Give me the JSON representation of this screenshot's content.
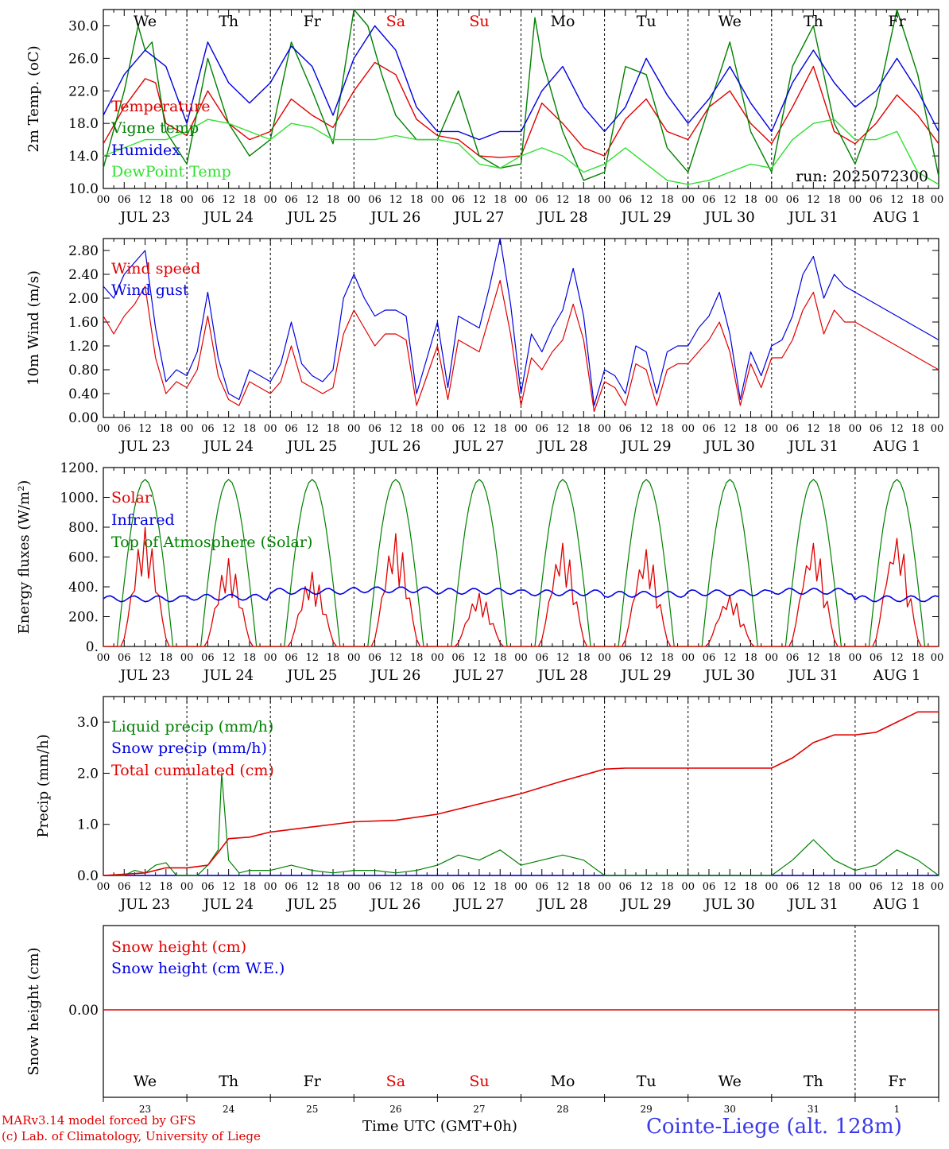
{
  "meta": {
    "credit1": "MARv3.14 model forced by GFS",
    "credit2": "(c) Lab. of Climatology, University of Liege",
    "xlabel": "Time UTC (GMT+0h)",
    "station": "Cointe-Liege (alt. 128m)",
    "run": "run: 2025072300"
  },
  "colors": {
    "red": "#e00000",
    "blue": "#0000e0",
    "green": "#008000",
    "lightgreen": "#30e030",
    "station": "#3a3ae8"
  },
  "hour_ticks": [
    "00",
    "06",
    "12",
    "18"
  ],
  "end_tick": "00",
  "days": [
    "JUL 23",
    "JUL 24",
    "JUL 25",
    "JUL 26",
    "JUL 27",
    "JUL 28",
    "JUL 29",
    "JUL 30",
    "JUL 31",
    "AUG  1"
  ],
  "weekdays": [
    "We",
    "Th",
    "Fr",
    "Sa",
    "Su",
    "Mo",
    "Tu",
    "We",
    "Th",
    "Fr"
  ],
  "weekend_days": [
    3,
    4
  ],
  "daynums": [
    "23",
    "24",
    "25",
    "26",
    "27",
    "28",
    "29",
    "30",
    "31",
    "1"
  ],
  "chart_data": [
    {
      "type": "line",
      "ylabel": "2m Temp. (oC)",
      "ylim": [
        10,
        32
      ],
      "yticks": [
        "10.0",
        "14.0",
        "18.0",
        "22.0",
        "26.0",
        "30.0"
      ],
      "x_unit": "hours from 2025-07-23 00 UTC",
      "series": [
        {
          "name": "Temperature",
          "color": "red",
          "x": [
            0,
            6,
            12,
            15,
            18,
            24,
            30,
            36,
            42,
            48,
            54,
            60,
            66,
            72,
            78,
            84,
            90,
            96,
            102,
            108,
            114,
            120,
            126,
            132,
            138,
            144,
            150,
            156,
            162,
            168,
            174,
            180,
            186,
            192,
            198,
            204,
            210,
            216,
            222,
            228,
            234,
            240
          ],
          "y": [
            15.5,
            20,
            23.5,
            23,
            18,
            16.5,
            22,
            18,
            16,
            17,
            21,
            19,
            17.5,
            22,
            25.5,
            24,
            18.5,
            16.5,
            16,
            14,
            13.8,
            14,
            20.5,
            18,
            15,
            14,
            18.5,
            21,
            17,
            16,
            20,
            22,
            18,
            15.5,
            20,
            25,
            17,
            15.5,
            18,
            21.5,
            19,
            15.5
          ]
        },
        {
          "name": "Vigne temp",
          "color": "green",
          "x": [
            0,
            6,
            10,
            12,
            14,
            18,
            24,
            30,
            36,
            42,
            48,
            54,
            60,
            66,
            72,
            76,
            80,
            84,
            90,
            96,
            102,
            108,
            114,
            120,
            124,
            126,
            132,
            138,
            144,
            150,
            156,
            162,
            168,
            174,
            180,
            186,
            192,
            198,
            204,
            210,
            216,
            222,
            228,
            234,
            240
          ],
          "y": [
            12.5,
            22,
            30,
            27,
            28,
            17,
            13,
            26,
            18,
            14,
            16,
            28,
            22,
            15.5,
            32,
            30,
            24,
            19,
            16,
            16,
            22,
            14,
            12.5,
            13,
            31,
            26,
            17,
            11,
            12,
            25,
            24,
            15,
            12,
            20,
            28,
            17,
            12,
            25,
            30,
            18,
            13,
            20,
            32,
            24,
            11.5
          ]
        },
        {
          "name": "Humidex",
          "color": "blue",
          "x": [
            0,
            6,
            12,
            18,
            24,
            30,
            36,
            42,
            48,
            54,
            60,
            66,
            72,
            78,
            84,
            90,
            96,
            102,
            108,
            114,
            120,
            126,
            132,
            138,
            144,
            150,
            156,
            162,
            168,
            174,
            180,
            186,
            192,
            198,
            204,
            210,
            216,
            222,
            228,
            234,
            240
          ],
          "y": [
            19,
            24,
            27,
            25,
            18,
            28,
            23,
            20.5,
            23,
            27.5,
            25,
            19,
            26,
            30,
            27,
            20,
            17,
            17,
            16,
            17,
            17,
            22,
            25,
            20,
            17,
            20,
            26,
            21.5,
            18,
            21,
            25,
            20.5,
            17,
            23,
            27,
            23,
            20,
            22,
            26,
            22,
            17
          ]
        },
        {
          "name": "DewPoint Temp",
          "color": "lightgreen",
          "x": [
            0,
            6,
            12,
            18,
            24,
            30,
            36,
            42,
            48,
            54,
            60,
            66,
            72,
            78,
            84,
            90,
            96,
            102,
            108,
            114,
            120,
            126,
            132,
            138,
            144,
            150,
            156,
            162,
            168,
            174,
            180,
            186,
            192,
            198,
            204,
            210,
            216,
            222,
            228,
            234,
            240
          ],
          "y": [
            14,
            15,
            16,
            16,
            17,
            18.5,
            18,
            17,
            16,
            18,
            17.5,
            16,
            16,
            16,
            16.5,
            16,
            16,
            15.5,
            13,
            12.5,
            14,
            15,
            14,
            12,
            13,
            15,
            13,
            11,
            10.5,
            11,
            12,
            13,
            12.5,
            16,
            18,
            18.5,
            16,
            16,
            17,
            12,
            10.5
          ]
        }
      ]
    },
    {
      "type": "line",
      "ylabel": "10m Wind (m/s)",
      "ylim": [
        0,
        3.0
      ],
      "yticks": [
        "0.00",
        "0.40",
        "0.80",
        "1.20",
        "1.60",
        "2.00",
        "2.40",
        "2.80"
      ],
      "x_unit": "hours from 2025-07-23 00 UTC",
      "series": [
        {
          "name": "Wind speed",
          "color": "red",
          "x": [
            0,
            3,
            6,
            9,
            12,
            15,
            18,
            21,
            24,
            27,
            30,
            33,
            36,
            39,
            42,
            45,
            48,
            51,
            54,
            57,
            60,
            63,
            66,
            69,
            72,
            75,
            78,
            81,
            84,
            87,
            90,
            93,
            96,
            99,
            102,
            105,
            108,
            111,
            114,
            117,
            120,
            123,
            126,
            129,
            132,
            135,
            138,
            141,
            144,
            147,
            150,
            153,
            156,
            159,
            162,
            165,
            168,
            171,
            174,
            177,
            180,
            183,
            186,
            189,
            192,
            195,
            198,
            201,
            204,
            207,
            210,
            213,
            216,
            219,
            222,
            225,
            228,
            231,
            234,
            237,
            240
          ],
          "y": [
            1.7,
            1.4,
            1.7,
            1.9,
            2.2,
            1.0,
            0.4,
            0.6,
            0.5,
            0.8,
            1.7,
            0.7,
            0.3,
            0.2,
            0.6,
            0.5,
            0.4,
            0.6,
            1.2,
            0.6,
            0.5,
            0.4,
            0.5,
            1.4,
            1.8,
            1.5,
            1.2,
            1.4,
            1.4,
            1.3,
            0.2,
            0.7,
            1.2,
            0.3,
            1.3,
            1.2,
            1.1,
            1.7,
            2.3,
            1.4,
            0.2,
            1.0,
            0.8,
            1.1,
            1.3,
            1.9,
            1.3,
            0.1,
            0.6,
            0.5,
            0.2,
            0.9,
            0.8,
            0.2,
            0.8,
            0.9,
            0.9,
            1.1,
            1.3,
            1.6,
            1.1,
            0.2,
            0.9,
            0.5,
            1.0,
            1.0,
            1.3,
            1.8,
            2.1,
            1.4,
            1.8,
            1.6,
            1.6,
            1.5,
            1.4,
            1.3,
            1.2,
            1.1,
            1.0,
            0.9,
            0.8
          ]
        },
        {
          "name": "Wind gust",
          "color": "blue",
          "x": [
            0,
            3,
            6,
            9,
            12,
            15,
            18,
            21,
            24,
            27,
            30,
            33,
            36,
            39,
            42,
            45,
            48,
            51,
            54,
            57,
            60,
            63,
            66,
            69,
            72,
            75,
            78,
            81,
            84,
            87,
            90,
            93,
            96,
            99,
            102,
            105,
            108,
            111,
            114,
            117,
            120,
            123,
            126,
            129,
            132,
            135,
            138,
            141,
            144,
            147,
            150,
            153,
            156,
            159,
            162,
            165,
            168,
            171,
            174,
            177,
            180,
            183,
            186,
            189,
            192,
            195,
            198,
            201,
            204,
            207,
            210,
            213,
            216,
            219,
            222,
            225,
            228,
            231,
            234,
            237,
            240
          ],
          "y": [
            2.2,
            2.0,
            2.4,
            2.6,
            2.8,
            1.5,
            0.6,
            0.8,
            0.7,
            1.1,
            2.1,
            1.0,
            0.4,
            0.3,
            0.8,
            0.7,
            0.6,
            0.9,
            1.6,
            0.9,
            0.7,
            0.6,
            0.8,
            2.0,
            2.4,
            2.0,
            1.7,
            1.8,
            1.8,
            1.7,
            0.4,
            1.0,
            1.6,
            0.5,
            1.7,
            1.6,
            1.5,
            2.2,
            3.0,
            1.9,
            0.4,
            1.4,
            1.1,
            1.5,
            1.8,
            2.5,
            1.7,
            0.2,
            0.8,
            0.7,
            0.4,
            1.2,
            1.1,
            0.4,
            1.1,
            1.2,
            1.2,
            1.5,
            1.7,
            2.1,
            1.4,
            0.3,
            1.1,
            0.7,
            1.2,
            1.3,
            1.7,
            2.4,
            2.7,
            2.0,
            2.4,
            2.2,
            2.1,
            2.0,
            1.9,
            1.8,
            1.7,
            1.6,
            1.5,
            1.4,
            1.3
          ]
        }
      ]
    },
    {
      "type": "line",
      "ylabel": "Energy fluxes (W/m2)",
      "ylim": [
        0,
        1200
      ],
      "yticks": [
        "0.",
        "200.",
        "400.",
        "600.",
        "800.",
        "1000.",
        "1200."
      ],
      "x_unit": "hours from 2025-07-23 00 UTC",
      "toa_peak": 1120,
      "solar_peaks": [
        800,
        590,
        500,
        760,
        360,
        700,
        660,
        350,
        710,
        750
      ],
      "infrared": [
        320,
        330,
        370,
        380,
        370,
        360,
        350,
        360,
        370,
        320
      ],
      "series": [
        {
          "name": "Solar",
          "color": "red"
        },
        {
          "name": "Infrared",
          "color": "blue"
        },
        {
          "name": "Top of Atmosphere (Solar)",
          "color": "green"
        }
      ]
    },
    {
      "type": "line",
      "ylabel": "Precip (mm/h)",
      "ylim": [
        0,
        3.5
      ],
      "yticks": [
        "0.0",
        "1.0",
        "2.0",
        "3.0"
      ],
      "x_unit": "hours from 2025-07-23 00 UTC",
      "series": [
        {
          "name": "Liquid precip (mm/h)",
          "color": "green",
          "x": [
            0,
            6,
            9,
            12,
            15,
            18,
            21,
            24,
            27,
            30,
            33,
            34,
            36,
            39,
            42,
            48,
            54,
            60,
            66,
            72,
            78,
            84,
            90,
            96,
            102,
            108,
            114,
            120,
            126,
            132,
            138,
            144,
            168,
            174,
            180,
            186,
            192,
            198,
            204,
            210,
            216,
            222,
            228,
            234,
            240
          ],
          "y": [
            0,
            0,
            0.1,
            0.05,
            0.2,
            0.25,
            0,
            0,
            0,
            0.2,
            0.5,
            2.0,
            0.3,
            0.05,
            0.1,
            0.1,
            0.2,
            0.1,
            0.05,
            0.1,
            0.1,
            0.05,
            0.1,
            0.2,
            0.4,
            0.3,
            0.5,
            0.2,
            0.3,
            0.4,
            0.3,
            0,
            0,
            0,
            0,
            0,
            0,
            0.3,
            0.7,
            0.3,
            0.1,
            0.2,
            0.5,
            0.3,
            0
          ]
        },
        {
          "name": "Snow precip (mm/h)",
          "color": "blue",
          "x": [
            0,
            240
          ],
          "y": [
            0,
            0
          ]
        },
        {
          "name": "Total cumulated (cm)",
          "color": "red",
          "x": [
            0,
            12,
            18,
            24,
            30,
            33,
            36,
            42,
            48,
            60,
            72,
            84,
            96,
            108,
            120,
            132,
            144,
            150,
            156,
            168,
            180,
            192,
            198,
            204,
            210,
            216,
            222,
            228,
            234,
            240
          ],
          "y": [
            0,
            0.05,
            0.15,
            0.15,
            0.2,
            0.45,
            0.72,
            0.75,
            0.85,
            0.95,
            1.05,
            1.08,
            1.2,
            1.4,
            1.6,
            1.85,
            2.08,
            2.1,
            2.1,
            2.1,
            2.1,
            2.1,
            2.3,
            2.6,
            2.75,
            2.75,
            2.8,
            3.0,
            3.2,
            3.2
          ]
        }
      ]
    },
    {
      "type": "line",
      "ylabel": "Snow height (cm)",
      "yticks": [
        "0.00"
      ],
      "series": [
        {
          "name": "Snow height (cm)",
          "color": "red",
          "x": [
            0,
            240
          ],
          "y": [
            0,
            0
          ]
        },
        {
          "name": "Snow height (cm W.E.)",
          "color": "blue",
          "x": [
            0,
            240
          ],
          "y": [
            0,
            0
          ]
        }
      ]
    }
  ]
}
